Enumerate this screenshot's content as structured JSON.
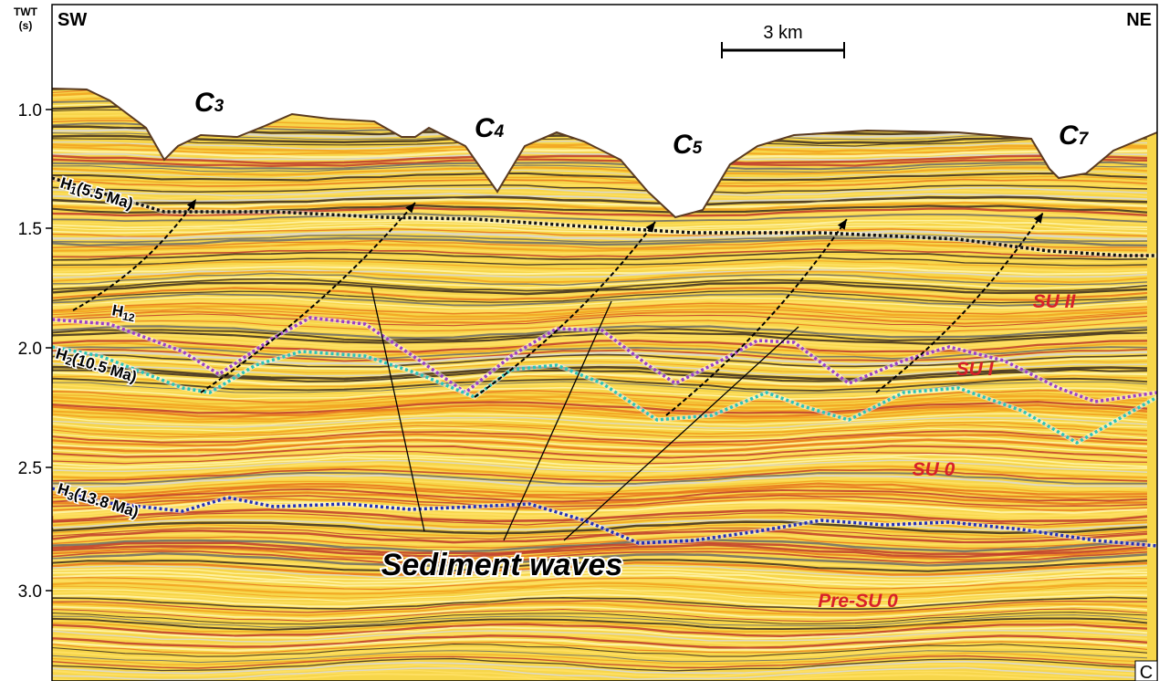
{
  "axis": {
    "title_line1": "TWT",
    "title_line2": "(s)",
    "ticks": [
      "1.0",
      "1.5",
      "2.0",
      "2.5",
      "3.0"
    ]
  },
  "direction": {
    "left": "SW",
    "right": "NE"
  },
  "scale_bar": {
    "label": "3 km"
  },
  "channels": [
    {
      "letter": "C",
      "sub": "3"
    },
    {
      "letter": "C",
      "sub": "4"
    },
    {
      "letter": "C",
      "sub": "5"
    },
    {
      "letter": "C",
      "sub": "7"
    }
  ],
  "horizons": [
    {
      "letter": "H",
      "sub": "1",
      "age": "(5.5 Ma)",
      "color": "#111111"
    },
    {
      "letter": "H",
      "sub": "12",
      "age": "",
      "color": "#9b3fc8"
    },
    {
      "letter": "H",
      "sub": "2",
      "age": "(10.5 Ma)",
      "color": "#2bc4b8"
    },
    {
      "letter": "H",
      "sub": "3",
      "age": "(13.8 Ma)",
      "color": "#2230b8"
    }
  ],
  "units": [
    "SU II",
    "SU I",
    "SU 0",
    "Pre-SU 0"
  ],
  "unit_color": "#d8202a",
  "annotation": "Sediment waves",
  "panel_letter": "C"
}
